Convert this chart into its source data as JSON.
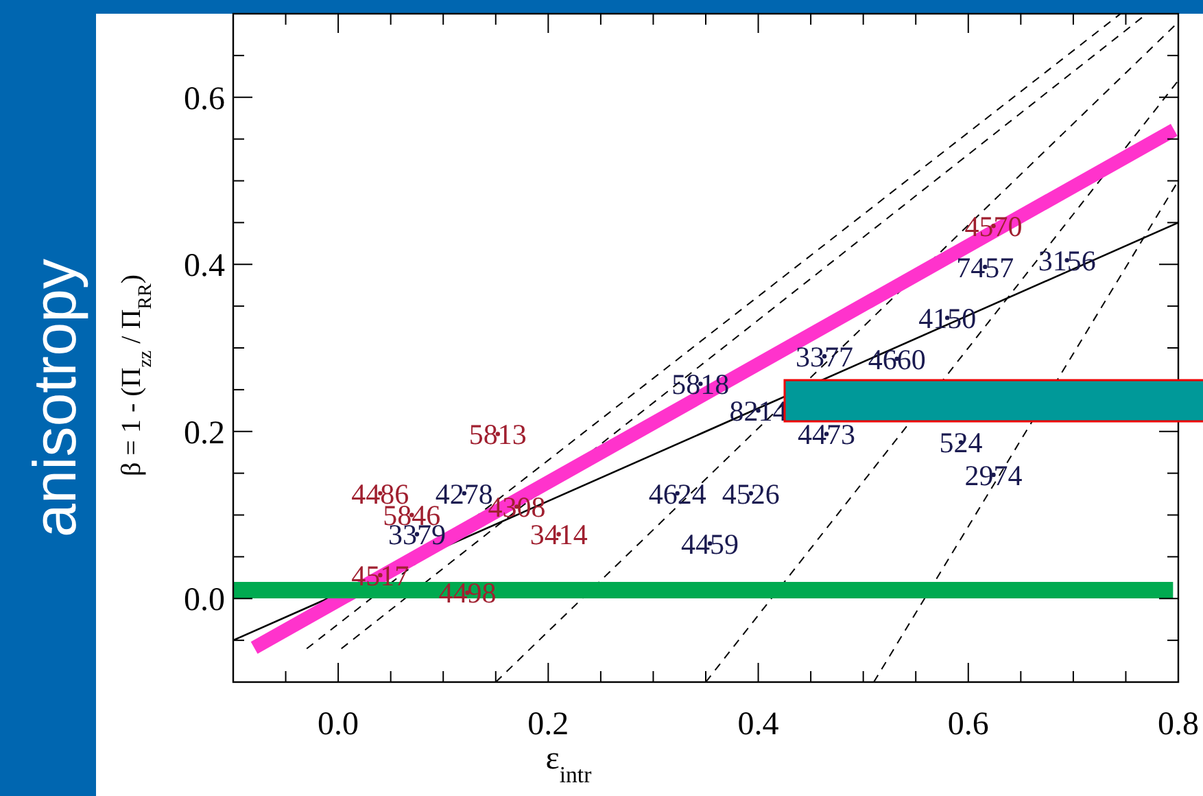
{
  "chart_data": {
    "type": "line",
    "xlabel": "ε$_{intr}$",
    "ylabel": "β = 1 - (Π$_{zz}$ / Π$_{RR}$)",
    "annotations": [
      "anisotropy",
      {
        "text": "4486",
        "x": 0.04,
        "y": 0.126
      },
      {
        "text": "5846",
        "x": 0.07,
        "y": 0.1
      },
      {
        "text": "4308",
        "x": 0.17,
        "y": 0.11
      },
      {
        "text": "3414",
        "x": 0.21,
        "y": 0.077
      },
      {
        "text": "5813",
        "x": 0.152,
        "y": 0.197
      },
      {
        "text": "4517",
        "x": 0.04,
        "y": 0.028
      },
      {
        "text": "4498",
        "x": 0.123,
        "y": 0.007
      },
      {
        "text": "4570",
        "x": 0.624,
        "y": 0.446
      },
      {
        "text": "4278",
        "x": 0.12,
        "y": 0.126
      },
      {
        "text": "3379",
        "x": 0.075,
        "y": 0.077
      },
      {
        "text": "4624",
        "x": 0.323,
        "y": 0.126
      },
      {
        "text": "4526",
        "x": 0.393,
        "y": 0.126
      },
      {
        "text": "4459",
        "x": 0.354,
        "y": 0.066
      },
      {
        "text": "4473",
        "x": 0.465,
        "y": 0.197
      },
      {
        "text": "524",
        "x": 0.593,
        "y": 0.187
      },
      {
        "text": "2974",
        "x": 0.624,
        "y": 0.148
      },
      {
        "text": "8214",
        "x": 0.4,
        "y": 0.225
      },
      {
        "text": "5818",
        "x": 0.345,
        "y": 0.257
      },
      {
        "text": "3377",
        "x": 0.463,
        "y": 0.29
      },
      {
        "text": "4660",
        "x": 0.532,
        "y": 0.287
      },
      {
        "text": "4150",
        "x": 0.58,
        "y": 0.336
      },
      {
        "text": "7457",
        "x": 0.616,
        "y": 0.397
      },
      {
        "text": "3156",
        "x": 0.694,
        "y": 0.405
      }
    ],
    "xlim": [
      -0.1,
      0.8
    ],
    "ylim": [
      -0.1,
      0.7
    ],
    "xticks": [
      {
        "value": -0.05,
        "label": null
      },
      {
        "value": 0,
        "label": "0.0"
      },
      {
        "value": 0.05,
        "label": null
      },
      {
        "value": 0.1,
        "label": null
      },
      {
        "value": 0.15,
        "label": null
      },
      {
        "value": 0.2,
        "label": "0.2"
      },
      {
        "value": 0.25,
        "label": null
      },
      {
        "value": 0.3,
        "label": null
      },
      {
        "value": 0.35,
        "label": null
      },
      {
        "value": 0.4,
        "label": "0.4"
      },
      {
        "value": 0.45,
        "label": null
      },
      {
        "value": 0.5,
        "label": null
      },
      {
        "value": 0.55,
        "label": null
      },
      {
        "value": 0.6,
        "label": "0.6"
      },
      {
        "value": 0.65,
        "label": null
      },
      {
        "value": 0.7,
        "label": null
      },
      {
        "value": 0.75,
        "label": null
      },
      {
        "value": 0.8,
        "label": "0.8"
      }
    ],
    "yticks": [
      {
        "value": -0.05,
        "label": null
      },
      {
        "value": 0,
        "label": "0.0"
      },
      {
        "value": 0.05,
        "label": null
      },
      {
        "value": 0.1,
        "label": null
      },
      {
        "value": 0.15,
        "label": null
      },
      {
        "value": 0.2,
        "label": "0.2"
      },
      {
        "value": 0.25,
        "label": null
      },
      {
        "value": 0.3,
        "label": null
      },
      {
        "value": 0.35,
        "label": null
      },
      {
        "value": 0.4,
        "label": "0.4"
      },
      {
        "value": 0.45,
        "label": null
      },
      {
        "value": 0.5,
        "label": null
      },
      {
        "value": 0.55,
        "label": null
      },
      {
        "value": 0.6,
        "label": "0.6"
      },
      {
        "value": 0.65,
        "label": null
      }
    ],
    "grid": false,
    "series": [
      {
        "color": "#000000",
        "line_style": "solid",
        "marker": "none",
        "x": [
          -0.1,
          0.8
        ],
        "values": [
          -0.05,
          0.45
        ]
      },
      {
        "type": "line",
        "color": "#000000",
        "line_style": "dashed",
        "marker": "none",
        "x": [
          -0.03,
          0.745
        ],
        "values": [
          -0.06,
          0.7
        ]
      },
      {
        "type": "line",
        "color": "#000000",
        "line_style": "dashed",
        "marker": "none",
        "x": [
          0.003,
          0.77
        ],
        "values": [
          -0.06,
          0.7
        ]
      },
      {
        "type": "line",
        "color": "#000000",
        "line_style": "dashed",
        "marker": "none",
        "x": [
          0.15,
          0.8
        ],
        "values": [
          -0.1,
          0.69
        ]
      },
      {
        "type": "line",
        "color": "#000000",
        "line_style": "dashed",
        "marker": "none",
        "x": [
          0.35,
          0.8
        ],
        "values": [
          -0.1,
          0.62
        ]
      },
      {
        "type": "line",
        "color": "#000000",
        "line_style": "dashed",
        "marker": "none",
        "x": [
          0.51,
          0.8
        ],
        "values": [
          -0.1,
          0.5
        ]
      },
      {
        "type": "line",
        "color": "#ff33cc",
        "line_style": "solid",
        "marker": "none",
        "x": [
          -0.08,
          0.796
        ],
        "values": [
          -0.059,
          0.561
        ]
      },
      {
        "type": "line",
        "color": "#00aa50",
        "line_style": "solid",
        "marker": "none",
        "x": [
          -0.1,
          0.795
        ],
        "values": [
          0.01,
          0.01
        ]
      },
      {
        "type": "scatter",
        "color": "#a02030",
        "marker": "circle",
        "x": [
          0.04,
          0.07,
          0.17,
          0.21,
          0.152,
          0.04,
          0.123,
          0.624
        ],
        "values": [
          0.126,
          0.1,
          0.11,
          0.077,
          0.197,
          0.028,
          0.007,
          0.446
        ]
      },
      {
        "type": "scatter",
        "color": "#1a1a50",
        "marker": "circle",
        "x": [
          0.12,
          0.075,
          0.323,
          0.393,
          0.354,
          0.465,
          0.593,
          0.624,
          0.4,
          0.345,
          0.463,
          0.532,
          0.58,
          0.616,
          0.694
        ],
        "values": [
          0.126,
          0.077,
          0.126,
          0.126,
          0.066,
          0.197,
          0.187,
          0.148,
          0.225,
          0.257,
          0.29,
          0.287,
          0.336,
          0.397,
          0.405
        ]
      }
    ]
  }
}
